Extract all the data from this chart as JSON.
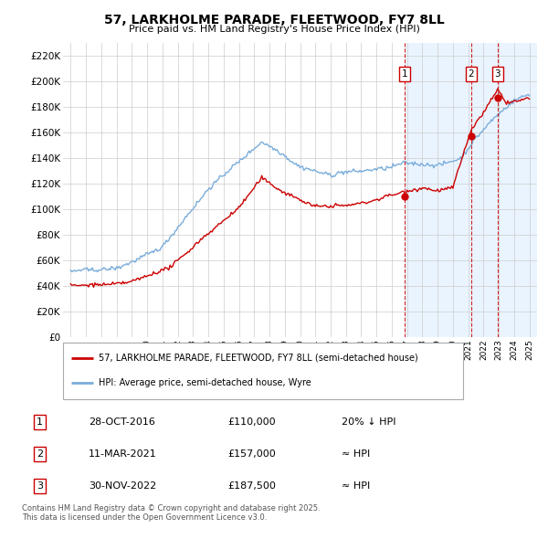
{
  "title": "57, LARKHOLME PARADE, FLEETWOOD, FY7 8LL",
  "subtitle": "Price paid vs. HM Land Registry's House Price Index (HPI)",
  "legend_line1": "57, LARKHOLME PARADE, FLEETWOOD, FY7 8LL (semi-detached house)",
  "legend_line2": "HPI: Average price, semi-detached house, Wyre",
  "transactions": [
    {
      "label": "1",
      "date": "28-OCT-2016",
      "price": 110000,
      "note": "20% ↓ HPI",
      "year": 2016.83
    },
    {
      "label": "2",
      "date": "11-MAR-2021",
      "price": 157000,
      "note": "≈ HPI",
      "year": 2021.19
    },
    {
      "label": "3",
      "date": "30-NOV-2022",
      "price": 187500,
      "note": "≈ HPI",
      "year": 2022.92
    }
  ],
  "footer": "Contains HM Land Registry data © Crown copyright and database right 2025.\nThis data is licensed under the Open Government Licence v3.0.",
  "red_color": "#cc0000",
  "blue_color": "#7aaddb",
  "shade_color": "#ddeeff",
  "background_color": "#ffffff",
  "grid_color": "#cccccc",
  "ylim": [
    0,
    230000
  ],
  "yticks": [
    0,
    20000,
    40000,
    60000,
    80000,
    100000,
    120000,
    140000,
    160000,
    180000,
    200000,
    220000
  ],
  "xmin": 1994.5,
  "xmax": 2025.5
}
